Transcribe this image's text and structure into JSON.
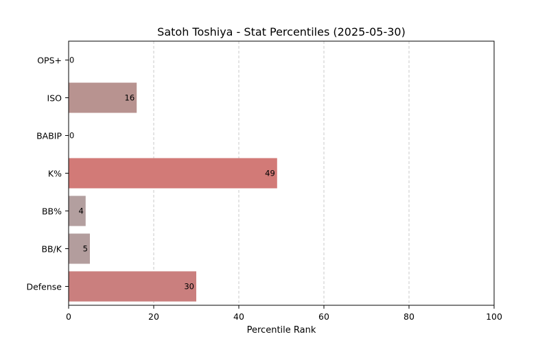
{
  "chart_data": {
    "type": "bar",
    "orientation": "horizontal",
    "title": "Satoh Toshiya - Stat Percentiles (2025-05-30)",
    "xlabel": "Percentile Rank",
    "ylabel": "",
    "xlim": [
      0,
      100
    ],
    "xticks": [
      0,
      20,
      40,
      60,
      80,
      100
    ],
    "grid": "x-dashed",
    "categories": [
      "OPS+",
      "ISO",
      "BABIP",
      "K%",
      "BB%",
      "BB/K",
      "Defense"
    ],
    "values": [
      0,
      16,
      0,
      49,
      4,
      5,
      30
    ],
    "colors": [
      "#b0a0a0",
      "#b89390",
      "#b0a0a0",
      "#d27a77",
      "#b39f9f",
      "#b39d9d",
      "#ca7f7e"
    ]
  }
}
